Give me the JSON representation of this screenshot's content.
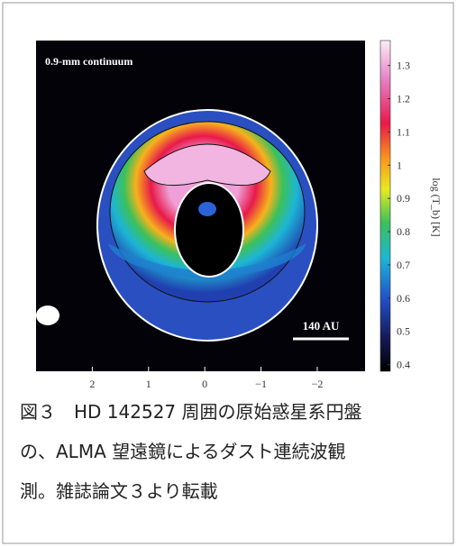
{
  "figure": {
    "image_label": "0.9-mm continuum",
    "scale_label": "140 AU",
    "colorbar": {
      "label": "log (T_b) [K]",
      "lim": [
        0.38,
        1.375
      ],
      "ticks": [
        1.3,
        1.2,
        1.1,
        1,
        0.9,
        0.8,
        0.7,
        0.6,
        0.5,
        0.4
      ]
    },
    "xlim": [
      3.0,
      -2.85
    ],
    "xticks": [
      2,
      1,
      0,
      {
        "value": -1,
        "label": "−1"
      },
      {
        "value": -2,
        "label": "−2"
      }
    ]
  },
  "caption": [
    "図３　HD 142527 周囲の原始惑星系円盤",
    "の、ALMA 望遠鏡によるダスト連続波観",
    "測。雑誌論文３より転載"
  ]
}
